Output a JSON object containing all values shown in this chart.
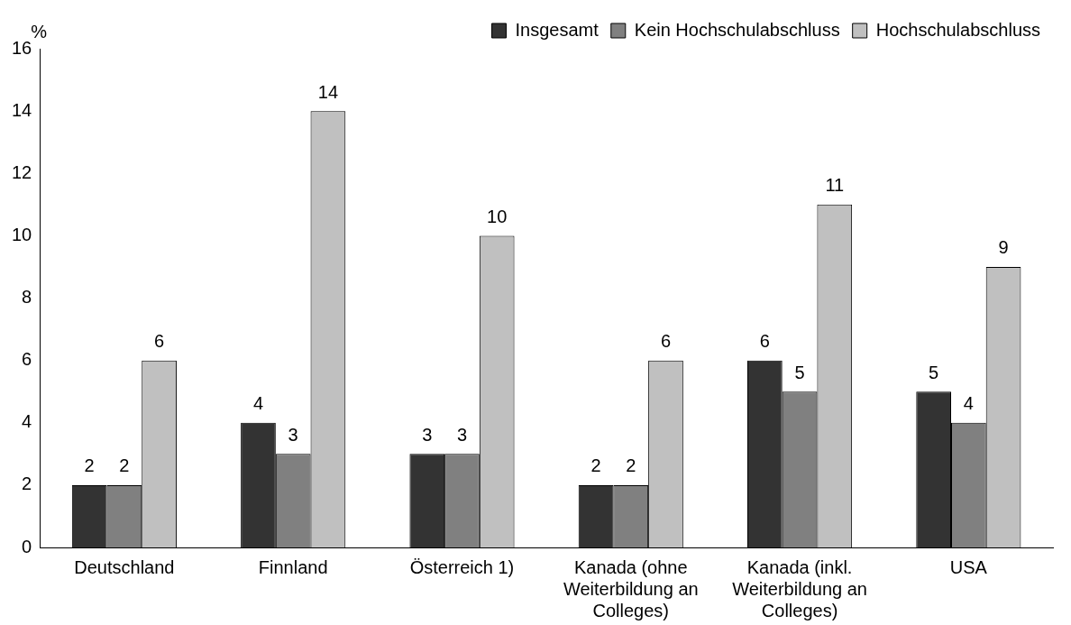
{
  "chart_data": {
    "type": "bar",
    "ylabel": "%",
    "categories": [
      "Deutschland",
      "Finnland",
      "Österreich 1)",
      "Kanada (ohne Weiterbildung an Colleges)",
      "Kanada (inkl. Weiterbildung an Colleges)",
      "USA"
    ],
    "series": [
      {
        "name": "Insgesamt",
        "color": "#333333",
        "values": [
          2,
          4,
          3,
          2,
          6,
          5
        ]
      },
      {
        "name": "Kein Hochschulabschluss",
        "color": "#808080",
        "values": [
          2,
          3,
          3,
          2,
          5,
          4
        ]
      },
      {
        "name": "Hochschulabschluss",
        "color": "#c0c0c0",
        "values": [
          6,
          14,
          10,
          6,
          11,
          9
        ]
      }
    ],
    "ylim": [
      0,
      16
    ],
    "yticks": [
      0,
      2,
      4,
      6,
      8,
      10,
      12,
      14,
      16
    ],
    "grid": false,
    "legend": "top right",
    "data_labels": true
  }
}
